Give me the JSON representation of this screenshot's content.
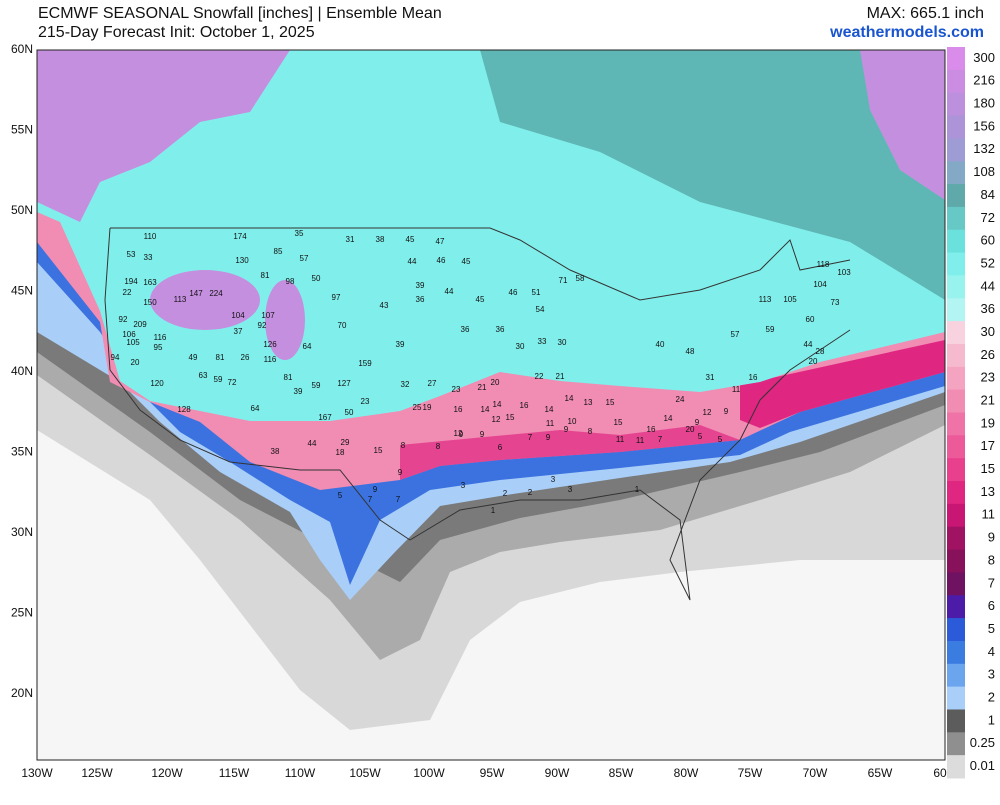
{
  "header": {
    "title": "ECMWF SEASONAL Snowfall [inches] | Ensemble Mean",
    "subtitle": "215-Day Forecast Init: October 1, 2025",
    "max": "MAX: 665.1 inch",
    "site": "weathermodels.com"
  },
  "lat_labels": [
    "60N",
    "55N",
    "50N",
    "45N",
    "40N",
    "35N",
    "30N",
    "25N",
    "20N"
  ],
  "lon_labels": [
    "130W",
    "125W",
    "120W",
    "115W",
    "110W",
    "105W",
    "100W",
    "95W",
    "90W",
    "85W",
    "80W",
    "75W",
    "70W",
    "65W",
    "60"
  ],
  "legend": {
    "levels": [
      "300",
      "216",
      "180",
      "156",
      "132",
      "108",
      "84",
      "72",
      "60",
      "52",
      "44",
      "36",
      "30",
      "26",
      "23",
      "21",
      "19",
      "17",
      "15",
      "13",
      "11",
      "9",
      "8",
      "7",
      "6",
      "5",
      "4",
      "3",
      "2",
      "1",
      "0.25",
      "0.01"
    ],
    "colors": [
      "#d98ce9",
      "#cb8de2",
      "#bc90dc",
      "#ad93d8",
      "#9e9bd5",
      "#84a9c7",
      "#5fa9ab",
      "#67c9c5",
      "#6be1dd",
      "#80efeb",
      "#98f3ef",
      "#b3f5f3",
      "#f8d2de",
      "#f6bace",
      "#f4a3c1",
      "#f18cb3",
      "#ef73a6",
      "#ec5a99",
      "#e8408d",
      "#df2681",
      "#c81674",
      "#a01363",
      "#88115b",
      "#6f1262",
      "#4c1ca9",
      "#2b5bd8",
      "#3b7ce1",
      "#6ba5ee",
      "#a9cff8",
      "#5c5c5c",
      "#8f8f8f",
      "#dcdcdc"
    ]
  },
  "stations": [
    110,
    53,
    33,
    194,
    163,
    22,
    150,
    92,
    209,
    106,
    105,
    116,
    95,
    94,
    20,
    120,
    128,
    174,
    130,
    85,
    35,
    57,
    81,
    98,
    50,
    224,
    147,
    113,
    104,
    107,
    92,
    37,
    126,
    64,
    70,
    97,
    159,
    127,
    167,
    50,
    23,
    116,
    26,
    49,
    81,
    63,
    59,
    72,
    64,
    39,
    81,
    59,
    44,
    38,
    29,
    18,
    15,
    8,
    8,
    9,
    9,
    6,
    7,
    9,
    9,
    8,
    11,
    11,
    7,
    5,
    5,
    9,
    9,
    7,
    5,
    7,
    3,
    2,
    2,
    3,
    3,
    1,
    1,
    31,
    38,
    45,
    47,
    44,
    46,
    45,
    39,
    44,
    43,
    36,
    45,
    46,
    51,
    71,
    58,
    54,
    36,
    36,
    30,
    33,
    30,
    39,
    32,
    27,
    23,
    21,
    20,
    22,
    21,
    25,
    19,
    16,
    14,
    14,
    15,
    16,
    14,
    14,
    13,
    15,
    12,
    11,
    10,
    12,
    15,
    16,
    14,
    9,
    12,
    9,
    11,
    40,
    48,
    57,
    59,
    60,
    105,
    104,
    73,
    113,
    118,
    103,
    44,
    28,
    20,
    16,
    31,
    24,
    20
  ]
}
